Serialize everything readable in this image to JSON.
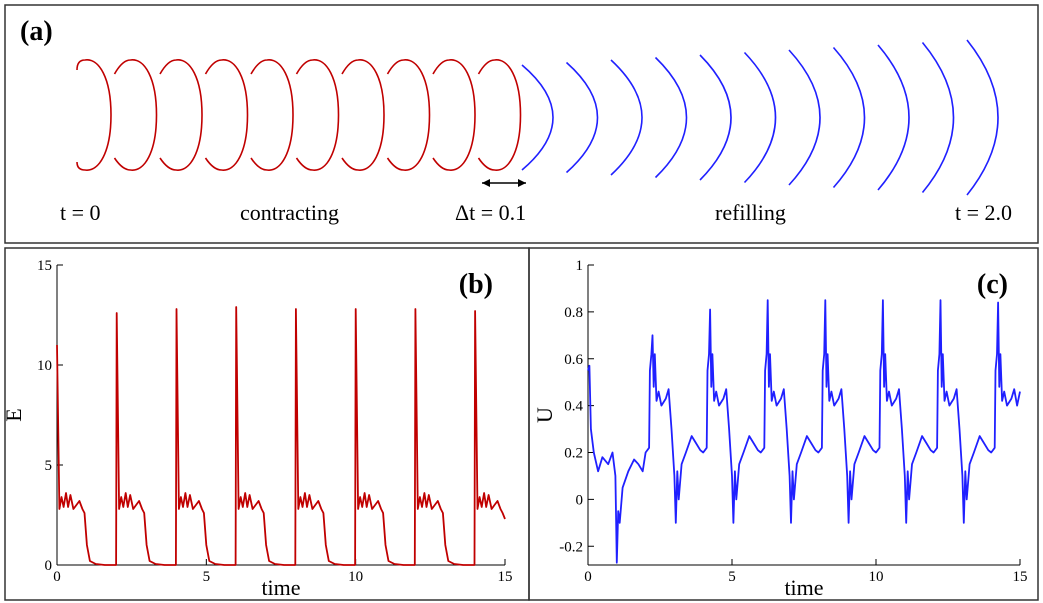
{
  "panel_a": {
    "label": "(a)",
    "texts": [
      "t = 0",
      "contracting",
      "Δt = 0.1",
      "refilling",
      "t = 2.0"
    ]
  },
  "chart_data": [
    {
      "type": "line",
      "panel_label": "(b)",
      "x_label": "time",
      "y_label": "E",
      "color": "#c00000",
      "xlim": [
        0,
        15
      ],
      "ylim": [
        0,
        15
      ],
      "xticks": [
        0,
        5,
        10,
        15
      ],
      "yticks": [
        0,
        5,
        10,
        15
      ],
      "x": [
        0,
        0.08,
        0.15,
        0.22,
        0.3,
        0.37,
        0.45,
        0.55,
        0.65,
        0.75,
        0.85,
        0.92,
        1,
        1.1,
        1.3,
        1.6,
        1.98,
        2,
        2.08,
        2.15,
        2.22,
        2.3,
        2.37,
        2.45,
        2.55,
        2.65,
        2.75,
        2.85,
        2.92,
        3,
        3.1,
        3.3,
        3.6,
        3.98,
        4,
        4.08,
        4.15,
        4.22,
        4.3,
        4.37,
        4.45,
        4.55,
        4.65,
        4.75,
        4.85,
        4.92,
        5,
        5.1,
        5.3,
        5.6,
        5.98,
        6,
        6.08,
        6.15,
        6.22,
        6.3,
        6.37,
        6.45,
        6.55,
        6.65,
        6.75,
        6.85,
        6.92,
        7,
        7.1,
        7.3,
        7.6,
        7.98,
        8,
        8.08,
        8.15,
        8.22,
        8.3,
        8.37,
        8.45,
        8.55,
        8.65,
        8.75,
        8.85,
        8.92,
        9,
        9.1,
        9.3,
        9.6,
        9.98,
        10,
        10.08,
        10.15,
        10.22,
        10.3,
        10.37,
        10.45,
        10.55,
        10.65,
        10.75,
        10.85,
        10.92,
        11,
        11.1,
        11.3,
        11.6,
        11.98,
        12,
        12.08,
        12.15,
        12.22,
        12.3,
        12.37,
        12.45,
        12.55,
        12.65,
        12.75,
        12.85,
        12.92,
        13,
        13.1,
        13.3,
        13.6,
        13.98,
        14,
        14.08,
        14.15,
        14.22,
        14.3,
        14.37,
        14.45,
        14.55,
        14.65,
        14.75,
        14.85,
        14.92,
        15
      ],
      "values": [
        11,
        2.8,
        3.4,
        2.9,
        3.6,
        2.9,
        3.5,
        2.8,
        3,
        3.2,
        2.8,
        2.6,
        1,
        0.2,
        0.05,
        0,
        0,
        12.6,
        2.8,
        3.4,
        2.9,
        3.6,
        2.9,
        3.5,
        2.8,
        3,
        3.2,
        2.8,
        2.6,
        1,
        0.2,
        0.05,
        0,
        0,
        12.8,
        2.8,
        3.4,
        2.9,
        3.6,
        2.9,
        3.5,
        2.8,
        3,
        3.2,
        2.8,
        2.6,
        1,
        0.2,
        0.05,
        0,
        0,
        12.9,
        2.8,
        3.4,
        2.9,
        3.6,
        2.9,
        3.5,
        2.8,
        3,
        3.2,
        2.8,
        2.6,
        1,
        0.2,
        0.05,
        0,
        0,
        12.8,
        2.8,
        3.4,
        2.9,
        3.6,
        2.9,
        3.5,
        2.8,
        3,
        3.2,
        2.8,
        2.6,
        1,
        0.2,
        0.05,
        0,
        0,
        12.8,
        2.8,
        3.4,
        2.9,
        3.6,
        2.9,
        3.5,
        2.8,
        3,
        3.2,
        2.8,
        2.6,
        1,
        0.2,
        0.05,
        0,
        0,
        12.8,
        2.8,
        3.4,
        2.9,
        3.6,
        2.9,
        3.5,
        2.8,
        3,
        3.2,
        2.8,
        2.6,
        1,
        0.2,
        0.05,
        0,
        0,
        12.7,
        2.8,
        3.4,
        2.9,
        3.6,
        2.9,
        3.5,
        2.8,
        3,
        3.2,
        2.8,
        2.6,
        2.3
      ]
    },
    {
      "type": "line",
      "panel_label": "(c)",
      "x_label": "time",
      "y_label": "U",
      "color": "#2020ff",
      "xlim": [
        0,
        15
      ],
      "ylim": [
        -0.28,
        1
      ],
      "xticks": [
        0,
        5,
        10,
        15
      ],
      "yticks": [
        -0.2,
        0,
        0.2,
        0.4,
        0.6,
        0.8,
        1
      ],
      "x": [
        0,
        0.05,
        0.1,
        0.2,
        0.35,
        0.5,
        0.7,
        0.85,
        0.95,
        1,
        1.05,
        1.1,
        1.2,
        1.4,
        1.6,
        1.75,
        1.9,
        2,
        2.12,
        2.15,
        2.2,
        2.24,
        2.28,
        2.32,
        2.38,
        2.45,
        2.55,
        2.7,
        2.8,
        2.9,
        3,
        3.05,
        3.1,
        3.15,
        3.25,
        3.4,
        3.6,
        3.75,
        3.9,
        4,
        4.12,
        4.15,
        4.2,
        4.24,
        4.28,
        4.32,
        4.38,
        4.45,
        4.55,
        4.7,
        4.8,
        4.9,
        5,
        5.05,
        5.1,
        5.15,
        5.25,
        5.4,
        5.6,
        5.75,
        5.9,
        6,
        6.12,
        6.15,
        6.2,
        6.24,
        6.28,
        6.32,
        6.38,
        6.45,
        6.55,
        6.7,
        6.8,
        6.9,
        7,
        7.05,
        7.1,
        7.15,
        7.25,
        7.4,
        7.6,
        7.75,
        7.9,
        8,
        8.12,
        8.15,
        8.2,
        8.24,
        8.28,
        8.32,
        8.38,
        8.45,
        8.55,
        8.7,
        8.8,
        8.9,
        9,
        9.05,
        9.1,
        9.15,
        9.25,
        9.4,
        9.6,
        9.75,
        9.9,
        10,
        10.12,
        10.15,
        10.2,
        10.24,
        10.28,
        10.32,
        10.38,
        10.45,
        10.55,
        10.7,
        10.8,
        10.9,
        11,
        11.05,
        11.1,
        11.15,
        11.25,
        11.4,
        11.6,
        11.75,
        11.9,
        12,
        12.12,
        12.15,
        12.2,
        12.24,
        12.28,
        12.32,
        12.38,
        12.45,
        12.55,
        12.7,
        12.8,
        12.9,
        13,
        13.05,
        13.1,
        13.15,
        13.25,
        13.4,
        13.6,
        13.75,
        13.9,
        14,
        14.12,
        14.15,
        14.2,
        14.24,
        14.28,
        14.32,
        14.38,
        14.45,
        14.55,
        14.7,
        14.8,
        14.9,
        15
      ],
      "values": [
        0.55,
        0.57,
        0.3,
        0.2,
        0.12,
        0.18,
        0.15,
        0.2,
        0.1,
        -0.27,
        -0.05,
        -0.1,
        0.05,
        0.12,
        0.17,
        0.15,
        0.12,
        0.2,
        0.22,
        0.55,
        0.62,
        0.7,
        0.48,
        0.62,
        0.42,
        0.46,
        0.4,
        0.43,
        0.47,
        0.3,
        0.1,
        -0.1,
        0.12,
        0,
        0.15,
        0.2,
        0.27,
        0.24,
        0.21,
        0.2,
        0.22,
        0.55,
        0.62,
        0.81,
        0.48,
        0.62,
        0.42,
        0.46,
        0.4,
        0.43,
        0.47,
        0.3,
        0.1,
        -0.1,
        0.12,
        0,
        0.15,
        0.2,
        0.27,
        0.24,
        0.21,
        0.2,
        0.22,
        0.55,
        0.62,
        0.85,
        0.48,
        0.62,
        0.42,
        0.46,
        0.4,
        0.43,
        0.47,
        0.3,
        0.1,
        -0.1,
        0.12,
        0,
        0.15,
        0.2,
        0.27,
        0.24,
        0.21,
        0.2,
        0.22,
        0.55,
        0.62,
        0.85,
        0.48,
        0.62,
        0.42,
        0.46,
        0.4,
        0.43,
        0.47,
        0.3,
        0.1,
        -0.1,
        0.12,
        0,
        0.15,
        0.2,
        0.27,
        0.24,
        0.21,
        0.2,
        0.22,
        0.55,
        0.62,
        0.85,
        0.48,
        0.62,
        0.42,
        0.46,
        0.4,
        0.43,
        0.47,
        0.3,
        0.1,
        -0.1,
        0.12,
        0,
        0.15,
        0.2,
        0.27,
        0.24,
        0.21,
        0.2,
        0.22,
        0.55,
        0.62,
        0.85,
        0.48,
        0.62,
        0.42,
        0.46,
        0.4,
        0.43,
        0.47,
        0.3,
        0.1,
        -0.1,
        0.12,
        0,
        0.15,
        0.2,
        0.27,
        0.24,
        0.21,
        0.2,
        0.22,
        0.55,
        0.62,
        0.84,
        0.48,
        0.62,
        0.42,
        0.46,
        0.4,
        0.43,
        0.47,
        0.4,
        0.46
      ]
    }
  ]
}
